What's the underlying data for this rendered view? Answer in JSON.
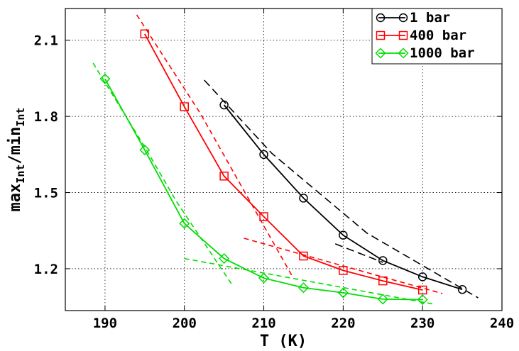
{
  "chart_data": {
    "type": "line",
    "xlabel": "T (K)",
    "ylabel": {
      "base1": "max",
      "sub1": "Int",
      "mid": "/min",
      "sub2": "Int"
    },
    "xlim": [
      185,
      240
    ],
    "ylim": [
      1.035,
      2.225
    ],
    "x_ticks": [
      190,
      200,
      210,
      220,
      230,
      240
    ],
    "x_tick_labels": [
      "190",
      "200",
      "210",
      "220",
      "230",
      "240"
    ],
    "y_ticks": [
      1.2,
      1.5,
      1.8,
      2.1
    ],
    "y_tick_labels": [
      "1.2",
      "1.5",
      "1.8",
      "2.1"
    ],
    "grid": true,
    "legend_position": "top-right",
    "series": [
      {
        "name": "1 bar",
        "color": "#000000",
        "marker": "circle",
        "x": [
          205,
          210,
          215,
          220,
          225,
          230,
          235
        ],
        "y": [
          1.845,
          1.65,
          1.478,
          1.332,
          1.232,
          1.168,
          1.118
        ]
      },
      {
        "name": "400 bar",
        "color": "#ff0000",
        "marker": "square",
        "x": [
          195,
          200,
          205,
          210,
          215,
          220,
          225,
          230
        ],
        "y": [
          2.125,
          1.838,
          1.565,
          1.405,
          1.25,
          1.193,
          1.152,
          1.116
        ]
      },
      {
        "name": "1000 bar",
        "color": "#00dd00",
        "marker": "diamond",
        "x": [
          190,
          195,
          200,
          205,
          210,
          215,
          220,
          225,
          230
        ],
        "y": [
          1.948,
          1.668,
          1.378,
          1.24,
          1.163,
          1.125,
          1.105,
          1.08,
          1.078
        ]
      }
    ],
    "fit_lines": [
      {
        "series": "1 bar",
        "color": "#000000",
        "dash": "long",
        "points": [
          [
            202.5,
            1.943
          ],
          [
            211,
            1.655
          ],
          [
            223,
            1.34
          ],
          [
            237,
            1.085
          ]
        ]
      },
      {
        "series": "1 bar",
        "color": "#000000",
        "dash": "long",
        "points": [
          [
            219,
            1.298
          ],
          [
            225,
            1.225
          ]
        ]
      },
      {
        "series": "400 bar",
        "color": "#ff0000",
        "dash": "short",
        "points": [
          [
            194,
            2.2
          ],
          [
            202,
            1.812
          ],
          [
            213.5,
            1.175
          ]
        ]
      },
      {
        "series": "400 bar",
        "color": "#ff0000",
        "dash": "short",
        "points": [
          [
            207.5,
            1.32
          ],
          [
            232.5,
            1.102
          ]
        ]
      },
      {
        "series": "1000 bar",
        "color": "#00dd00",
        "dash": "short",
        "points": [
          [
            188.5,
            2.01
          ],
          [
            195,
            1.68
          ],
          [
            199,
            1.465
          ],
          [
            206,
            1.137
          ]
        ]
      },
      {
        "series": "1000 bar",
        "color": "#00dd00",
        "dash": "short",
        "points": [
          [
            200,
            1.24
          ],
          [
            231.5,
            1.06
          ]
        ]
      }
    ]
  }
}
